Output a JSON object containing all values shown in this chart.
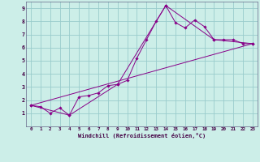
{
  "xlabel": "Windchill (Refroidissement éolien,°C)",
  "bg_color": "#cceee8",
  "grid_color": "#99cccc",
  "line_color": "#880088",
  "xlim": [
    -0.5,
    23.5
  ],
  "ylim": [
    0,
    9.5
  ],
  "xticks": [
    0,
    1,
    2,
    3,
    4,
    5,
    6,
    7,
    8,
    9,
    10,
    11,
    12,
    13,
    14,
    15,
    16,
    17,
    18,
    19,
    20,
    21,
    22,
    23
  ],
  "yticks": [
    1,
    2,
    3,
    4,
    5,
    6,
    7,
    8,
    9
  ],
  "series1_x": [
    0,
    1,
    2,
    3,
    4,
    5,
    6,
    7,
    8,
    9,
    10,
    11,
    12,
    13,
    14,
    15,
    16,
    17,
    18,
    19,
    20,
    21,
    22,
    23
  ],
  "series1_y": [
    1.6,
    1.5,
    1.0,
    1.4,
    0.85,
    2.25,
    2.35,
    2.55,
    3.1,
    3.2,
    3.5,
    5.2,
    6.6,
    8.0,
    9.2,
    7.9,
    7.5,
    8.1,
    7.6,
    6.6,
    6.6,
    6.6,
    6.3,
    6.3
  ],
  "series2_x": [
    0,
    23
  ],
  "series2_y": [
    1.6,
    6.3
  ],
  "series3_x": [
    0,
    4,
    9,
    14,
    19,
    23
  ],
  "series3_y": [
    1.6,
    0.85,
    3.2,
    9.2,
    6.6,
    6.3
  ]
}
